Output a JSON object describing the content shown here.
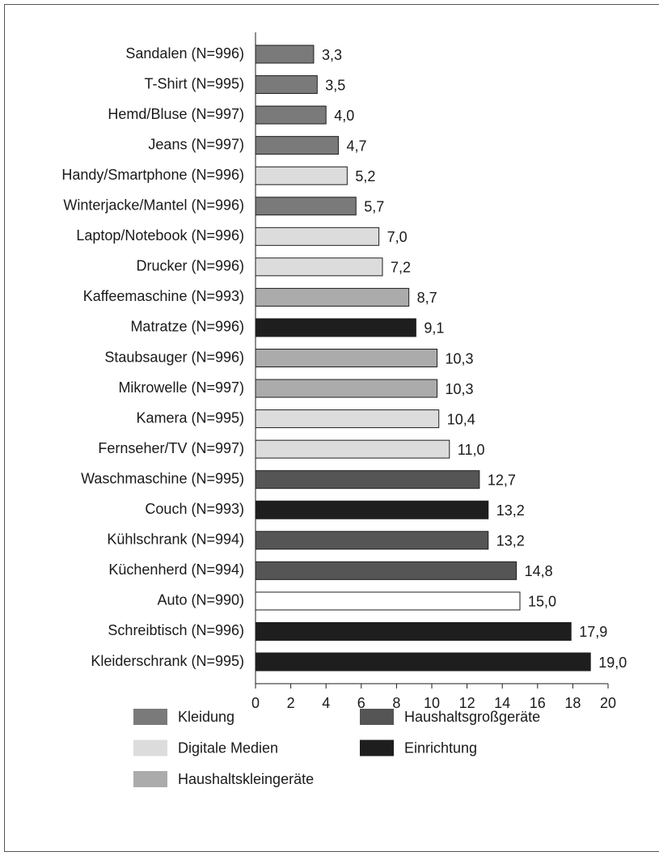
{
  "chart_data": {
    "type": "barh",
    "categories": [
      "Sandalen (N=996)",
      "T-Shirt (N=995)",
      "Hemd/Bluse (N=997)",
      "Jeans (N=997)",
      "Handy/Smartphone (N=996)",
      "Winterjacke/Mantel (N=996)",
      "Laptop/Notebook (N=996)",
      "Drucker (N=996)",
      "Kaffeemaschine (N=993)",
      "Matratze (N=996)",
      "Staubsauger (N=996)",
      "Mikrowelle (N=997)",
      "Kamera (N=995)",
      "Fernseher/TV (N=997)",
      "Waschmaschine (N=995)",
      "Couch (N=993)",
      "Kühlschrank (N=994)",
      "Küchenherd (N=994)",
      "Auto (N=990)",
      "Schreibtisch (N=996)",
      "Kleiderschrank (N=995)"
    ],
    "values": [
      3.3,
      3.5,
      4.0,
      4.7,
      5.2,
      5.7,
      7.0,
      7.2,
      8.7,
      9.1,
      10.3,
      10.3,
      10.4,
      11.0,
      12.7,
      13.2,
      13.2,
      14.8,
      15.0,
      17.9,
      19.0
    ],
    "value_labels": [
      "3,3",
      "3,5",
      "4,0",
      "4,7",
      "5,2",
      "5,7",
      "7,0",
      "7,2",
      "8,7",
      "9,1",
      "10,3",
      "10,3",
      "10,4",
      "11,0",
      "12,7",
      "13,2",
      "13,2",
      "14,8",
      "15,0",
      "17,9",
      "19,0"
    ],
    "colors": [
      "#7a7a7a",
      "#7a7a7a",
      "#7a7a7a",
      "#7a7a7a",
      "#dcdcdc",
      "#7a7a7a",
      "#dcdcdc",
      "#dcdcdc",
      "#ababab",
      "#1e1e1e",
      "#ababab",
      "#ababab",
      "#dcdcdc",
      "#dcdcdc",
      "#555555",
      "#1e1e1e",
      "#555555",
      "#555555",
      "#ffffff",
      "#1e1e1e",
      "#1e1e1e"
    ],
    "xlim": [
      0,
      20
    ],
    "xticks": [
      0,
      2,
      4,
      6,
      8,
      10,
      12,
      14,
      16,
      18,
      20
    ],
    "legend": [
      {
        "name": "Kleidung",
        "color": "#7a7a7a"
      },
      {
        "name": "Digitale Medien",
        "color": "#dcdcdc"
      },
      {
        "name": "Haushaltskleingeräte",
        "color": "#ababab"
      },
      {
        "name": "Haushaltsgroßgeräte",
        "color": "#555555"
      },
      {
        "name": "Einrichtung",
        "color": "#1e1e1e"
      }
    ]
  }
}
